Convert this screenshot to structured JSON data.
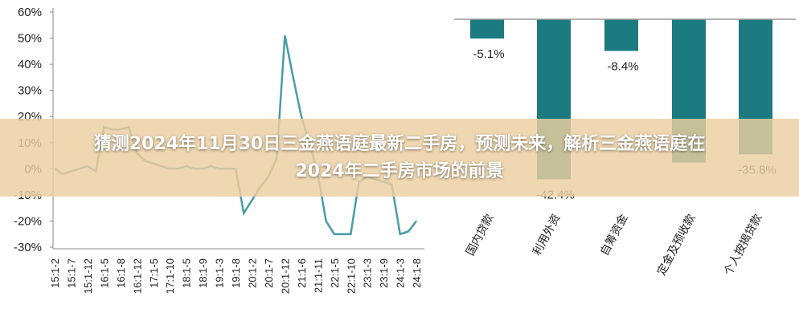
{
  "banner": {
    "text": "猜测2024年11月30日三金燕语庭最新二手房，预测未来，解析三金燕语庭在2024年二手房市场的前景"
  },
  "chart_data": [
    {
      "type": "line",
      "categories": [
        "15:1-2",
        null,
        "15:1-7",
        null,
        "15:1-12",
        null,
        "16:1-5",
        null,
        "16:1-8",
        null,
        "16:1-12",
        null,
        "17:1-5",
        null,
        "17:1-10",
        null,
        "18:1-5",
        null,
        "18:1-9",
        null,
        "19:1-3",
        null,
        "19:1-8",
        null,
        "20:1-2",
        null,
        "20:1-7",
        null,
        "20:1-12",
        null,
        "21:1-6",
        null,
        "21:1-11",
        null,
        "22:1-5",
        null,
        "22:1-10",
        null,
        "23:1-3",
        null,
        "23:1-9",
        null,
        "24:1-3",
        null,
        "24:1-8"
      ],
      "values": [
        0,
        -2,
        -1,
        0,
        1,
        -1,
        16,
        15,
        15,
        16,
        6,
        3,
        2,
        1,
        0,
        0,
        1,
        0,
        0,
        1,
        0,
        0,
        0,
        -17,
        -12,
        -7,
        -3,
        4,
        51,
        35,
        20,
        10,
        -2,
        -20,
        -25,
        -25,
        -25,
        -5,
        -3,
        -4,
        -5,
        -6,
        -25,
        -24,
        -20
      ],
      "color": "#4a9ba8",
      "ylim": [
        -30,
        60
      ],
      "yticks": [
        {
          "value": -30,
          "label": "-30%"
        },
        {
          "value": -20,
          "label": "-20%"
        },
        {
          "value": -10,
          "label": "-10%"
        },
        {
          "value": 0,
          "label": "0%"
        },
        {
          "value": 10,
          "label": "10%"
        },
        {
          "value": 20,
          "label": "20%"
        },
        {
          "value": 30,
          "label": "30%"
        },
        {
          "value": 40,
          "label": "40%"
        },
        {
          "value": 50,
          "label": "50%"
        },
        {
          "value": 60,
          "label": "60%"
        }
      ]
    },
    {
      "type": "bar",
      "categories": [
        "国内贷款",
        "利用外资",
        "自筹资金",
        "定金及预收款",
        "个人按揭贷款"
      ],
      "values": [
        -5.1,
        -42.4,
        -8.4,
        -38,
        -35.8
      ],
      "value_labels": [
        "-5.1%",
        "-42.4%",
        "-8.4%",
        null,
        "-35.8%"
      ],
      "color": "#1b7b80",
      "ylim": [
        -50,
        0
      ]
    }
  ]
}
